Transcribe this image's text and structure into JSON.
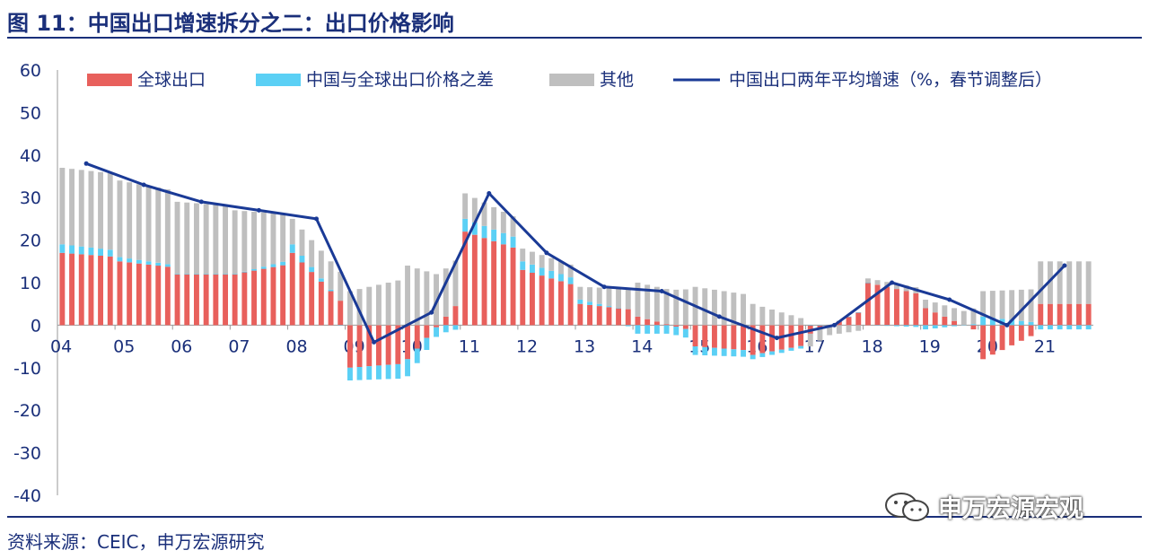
{
  "title": "图 11：中国出口增速拆分之二：出口价格影响",
  "source": "资料来源：CEIC，申万宏源研究",
  "watermark": "申万宏源宏观",
  "chart_data": {
    "type": "bar",
    "stacked": true,
    "ylim": [
      -40,
      60
    ],
    "yticks": [
      60,
      50,
      40,
      30,
      20,
      10,
      0,
      -10,
      -20,
      -30,
      -40
    ],
    "xticklabels": [
      "04",
      "05",
      "06",
      "07",
      "08",
      "09",
      "10",
      "11",
      "12",
      "13",
      "14",
      "15",
      "16",
      "17",
      "18",
      "19",
      "20",
      "21"
    ],
    "grid": false,
    "legend_position": "top",
    "colors": {
      "global": "#e8605c",
      "price": "#5bd0f5",
      "other": "#bfbfbf",
      "line": "#1a3a96",
      "text": "#1a2f7a"
    },
    "yearly": [
      {
        "year": "04",
        "global": 17,
        "price": 2,
        "other": 18,
        "line": 38
      },
      {
        "year": "05",
        "global": 15,
        "price": 1,
        "other": 18,
        "line": 33
      },
      {
        "year": "06",
        "global": 12,
        "price": 0,
        "other": 17,
        "line": 29
      },
      {
        "year": "07",
        "global": 12,
        "price": 0,
        "other": 15,
        "line": 27
      },
      {
        "year": "08",
        "global": 17,
        "price": 2,
        "other": 6,
        "line": 25
      },
      {
        "year": "09",
        "global": -10,
        "price": -3,
        "other": 8,
        "line": -4
      },
      {
        "year": "10",
        "global": -8,
        "price": -4,
        "other": 14,
        "line": 3
      },
      {
        "year": "11",
        "global": 22,
        "price": 3,
        "other": 6,
        "line": 31
      },
      {
        "year": "12",
        "global": 13,
        "price": 2,
        "other": 3,
        "line": 17
      },
      {
        "year": "13",
        "global": 5,
        "price": 1,
        "other": 3,
        "line": 9
      },
      {
        "year": "14",
        "global": 2,
        "price": -2,
        "other": 8,
        "line": 8
      },
      {
        "year": "15",
        "global": -5,
        "price": -2,
        "other": 9,
        "line": 2
      },
      {
        "year": "16",
        "global": -7,
        "price": -1,
        "other": 5,
        "line": -3
      },
      {
        "year": "17",
        "global": -2,
        "price": 0,
        "other": -3,
        "line": 0
      },
      {
        "year": "18",
        "global": 10,
        "price": 0,
        "other": 1,
        "line": 10
      },
      {
        "year": "19",
        "global": 4,
        "price": -1,
        "other": 2,
        "line": 6
      },
      {
        "year": "20",
        "global": -8,
        "price": 2,
        "other": 6,
        "line": 0
      },
      {
        "year": "21",
        "global": 5,
        "price": -1,
        "other": 10,
        "line": 14
      }
    ],
    "series": [
      {
        "name": "全球出口"
      },
      {
        "name": "中国与全球出口价格之差"
      },
      {
        "name": "其他"
      },
      {
        "name": "中国出口两年平均增速（%，春节调整后）"
      }
    ]
  }
}
